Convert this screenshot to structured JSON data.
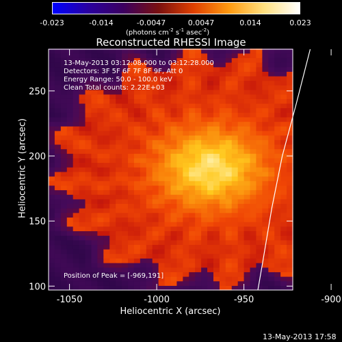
{
  "colorbar": {
    "tick_labels": [
      "-0.023",
      "-0.014",
      "-0.0047",
      "0.0047",
      "0.014",
      "0.023"
    ],
    "units_label": "(photons cm",
    "units_exp1": "-2",
    "units_mid": " s",
    "units_exp2": "-1",
    "units_tail": " asec",
    "units_exp3": "-2",
    "units_close": ")",
    "colors": [
      "#0000ff",
      "#2a00a0",
      "#3c0060",
      "#7a1010",
      "#e04000",
      "#ff9a10",
      "#ffe080",
      "#ffffff"
    ]
  },
  "info_lines": {
    "time_range": "13-May-2013 03:12:08.000 to 03:12:28.000",
    "detectors": "Detectors: 3F 5F 6F 7F 8F 9F, Att 0",
    "energy": "Energy Range: 50.0 - 100.0 keV",
    "clean": "Clean     Total counts: 2.22E+03",
    "peak": "Position of Peak = [-969,191]"
  },
  "footer": {
    "timestamp": "13-May-2013 17:58"
  },
  "chart_data": {
    "type": "heatmap",
    "title": "Reconstructed RHESSI Image",
    "xlabel": "Heliocentric X (arcsec)",
    "ylabel": "Heliocentric Y (arcsec)",
    "xlim": [
      -1062,
      -922
    ],
    "ylim": [
      97,
      282
    ],
    "x_ticks": [
      -1050,
      -1000,
      -950,
      -900
    ],
    "y_ticks": [
      100,
      150,
      200,
      250
    ],
    "x_tick_labels": [
      "-1050",
      "-1000",
      "-950",
      "-900"
    ],
    "y_tick_labels": [
      "100",
      "150",
      "200",
      "250"
    ],
    "peak": {
      "x": -969,
      "y": 191
    },
    "colorbar_range": [
      -0.023,
      0.023
    ],
    "limb_curve": [
      [
        -942,
        97
      ],
      [
        -939,
        120
      ],
      [
        -934,
        160
      ],
      [
        -928,
        200
      ],
      [
        -920,
        240
      ],
      [
        -912,
        282
      ]
    ]
  }
}
